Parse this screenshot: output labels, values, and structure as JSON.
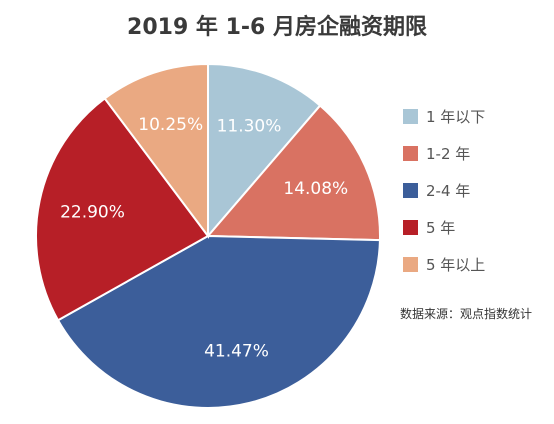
{
  "chart_data": {
    "type": "pie",
    "title": "2019 年 1-6 月房企融资期限",
    "slices": [
      {
        "name": "1 年以下",
        "value": 11.3,
        "label": "11.30%",
        "color": "#a9c6d6"
      },
      {
        "name": "1-2 年",
        "value": 14.08,
        "label": "14.08%",
        "color": "#d97262"
      },
      {
        "name": "2-4 年",
        "value": 41.47,
        "label": "41.47%",
        "color": "#3c5e9a"
      },
      {
        "name": "5 年",
        "value": 22.9,
        "label": "22.90%",
        "color": "#b71f27"
      },
      {
        "name": "5 年以上",
        "value": 10.25,
        "label": "10.25%",
        "color": "#eaa982"
      }
    ],
    "legend_placement": "right",
    "source": "数据来源：观点指数统计"
  }
}
